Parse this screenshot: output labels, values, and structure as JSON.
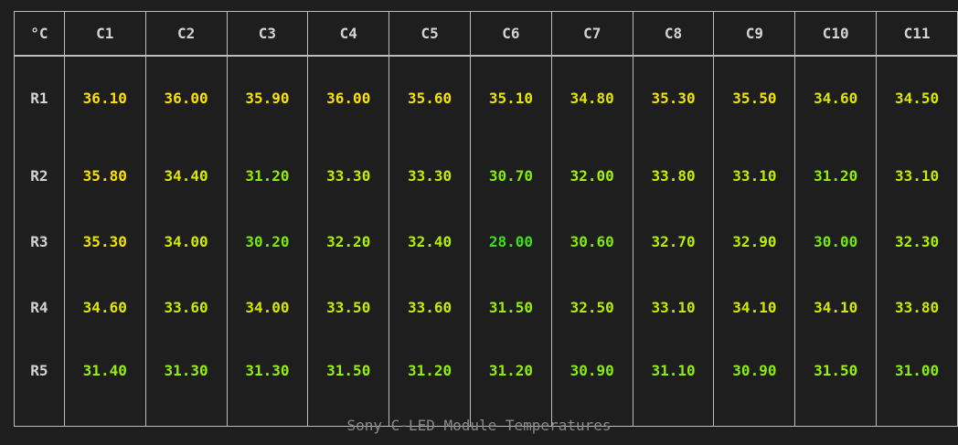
{
  "chart_data": {
    "type": "heatmap",
    "title": "Sony C-LED Module Temperatures",
    "corner_label": "°C",
    "columns": [
      "C1",
      "C2",
      "C3",
      "C4",
      "C5",
      "C6",
      "C7",
      "C8",
      "C9",
      "C10",
      "C11"
    ],
    "rows": [
      "R1",
      "R2",
      "R3",
      "R4",
      "R5"
    ],
    "values": [
      [
        "36.10",
        "36.00",
        "35.90",
        "36.00",
        "35.60",
        "35.10",
        "34.80",
        "35.30",
        "35.50",
        "34.60",
        "34.50"
      ],
      [
        "35.80",
        "34.40",
        "31.20",
        "33.30",
        "33.30",
        "30.70",
        "32.00",
        "33.80",
        "33.10",
        "31.20",
        "33.10"
      ],
      [
        "35.30",
        "34.00",
        "30.20",
        "32.20",
        "32.40",
        "28.00",
        "30.60",
        "32.70",
        "32.90",
        "30.00",
        "32.30"
      ],
      [
        "34.60",
        "33.60",
        "34.00",
        "33.50",
        "33.60",
        "31.50",
        "32.50",
        "33.10",
        "34.10",
        "34.10",
        "33.80"
      ],
      [
        "31.40",
        "31.30",
        "31.30",
        "31.50",
        "31.20",
        "31.20",
        "30.90",
        "31.10",
        "30.90",
        "31.50",
        "31.00"
      ]
    ],
    "color_scale": {
      "min": 28.0,
      "max": 36.1,
      "low_color": "#3fe01a",
      "mid_color": "#a8f000",
      "high_color": "#ffe000"
    }
  }
}
